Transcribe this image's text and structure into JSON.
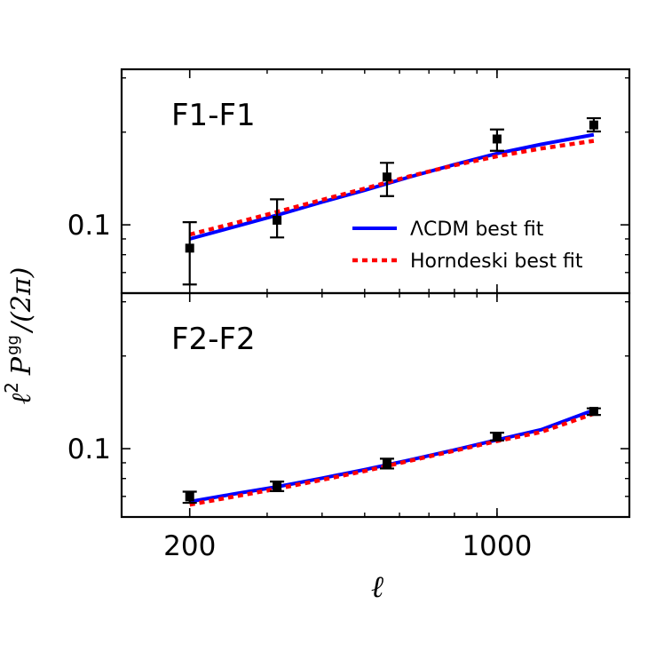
{
  "chart_data": {
    "type": "line",
    "x_scale": "log",
    "y_scale": "log",
    "xlabel": "ℓ",
    "ylabel": {
      "base": "ℓ",
      "power": "2",
      "symbol": "P",
      "superscript": "gg",
      "rest": "/(2π)"
    },
    "xlim": [
      140,
      2000
    ],
    "x_ticks": [
      {
        "value": 200,
        "label": "200"
      },
      {
        "value": 1000,
        "label": "1000"
      }
    ],
    "legend": {
      "placement": "right",
      "entries": [
        {
          "series": "lcdm",
          "label": "ΛCDM best fit"
        },
        {
          "series": "horndeski",
          "label": "Horndeski best fit"
        }
      ]
    },
    "colors": {
      "lcdm": "#0000ff",
      "horndeski": "#ff0000",
      "points": "#000000",
      "axes": "#000000"
    },
    "panels": [
      {
        "id": "F1-F1",
        "label": "F1-F1",
        "ylim": [
          0.06,
          0.32
        ],
        "y_ticks": [
          {
            "value": 0.1,
            "label": "0.1"
          }
        ],
        "points": [
          {
            "x": 200,
            "y": 0.084,
            "err_low": 0.064,
            "err_high": 0.102
          },
          {
            "x": 316,
            "y": 0.1035,
            "err_low": 0.091,
            "err_high": 0.121
          },
          {
            "x": 562,
            "y": 0.143,
            "err_low": 0.124,
            "err_high": 0.159
          },
          {
            "x": 1000,
            "y": 0.19,
            "err_low": 0.174,
            "err_high": 0.204
          },
          {
            "x": 1660,
            "y": 0.211,
            "err_low": 0.201,
            "err_high": 0.222
          }
        ],
        "series": [
          {
            "id": "lcdm",
            "name": "ΛCDM best fit",
            "x": [
              200,
              250,
              316,
              400,
              500,
              630,
              794,
              1000,
              1260,
              1660
            ],
            "y": [
              0.09,
              0.0981,
              0.1075,
              0.1185,
              0.1295,
              0.1428,
              0.1565,
              0.1705,
              0.1825,
              0.1962
            ]
          },
          {
            "id": "horndeski",
            "name": "Horndeski best fit",
            "x": [
              200,
              250,
              316,
              400,
              500,
              630,
              794,
              1000,
              1260,
              1660
            ],
            "y": [
              0.093,
              0.1008,
              0.1101,
              0.1205,
              0.1311,
              0.1435,
              0.1557,
              0.167,
              0.1769,
              0.1874
            ]
          }
        ]
      },
      {
        "id": "F2-F2",
        "label": "F2-F2",
        "ylim": [
          0.06,
          0.32
        ],
        "y_ticks": [
          {
            "value": 0.1,
            "label": "0.1"
          }
        ],
        "points": [
          {
            "x": 200,
            "y": 0.0697,
            "err_low": 0.0667,
            "err_high": 0.0725
          },
          {
            "x": 316,
            "y": 0.0755,
            "err_low": 0.0728,
            "err_high": 0.0782
          },
          {
            "x": 562,
            "y": 0.0895,
            "err_low": 0.0862,
            "err_high": 0.0928
          },
          {
            "x": 1000,
            "y": 0.1095,
            "err_low": 0.1063,
            "err_high": 0.1127
          },
          {
            "x": 1660,
            "y": 0.1322,
            "err_low": 0.1287,
            "err_high": 0.1352
          }
        ],
        "series": [
          {
            "id": "lcdm",
            "name": "ΛCDM best fit",
            "x": [
              200,
              250,
              316,
              400,
              500,
              630,
              794,
              1000,
              1260,
              1660
            ],
            "y": [
              0.0673,
              0.0711,
              0.0752,
              0.0802,
              0.0855,
              0.0917,
              0.0988,
              0.1068,
              0.1153,
              0.1335
            ]
          },
          {
            "id": "horndeski",
            "name": "Horndeski best fit",
            "x": [
              200,
              250,
              316,
              400,
              500,
              630,
              794,
              1000,
              1260,
              1660
            ],
            "y": [
              0.0658,
              0.0697,
              0.0741,
              0.0792,
              0.0846,
              0.0912,
              0.0982,
              0.1058,
              0.1133,
              0.1299
            ]
          }
        ]
      }
    ]
  }
}
